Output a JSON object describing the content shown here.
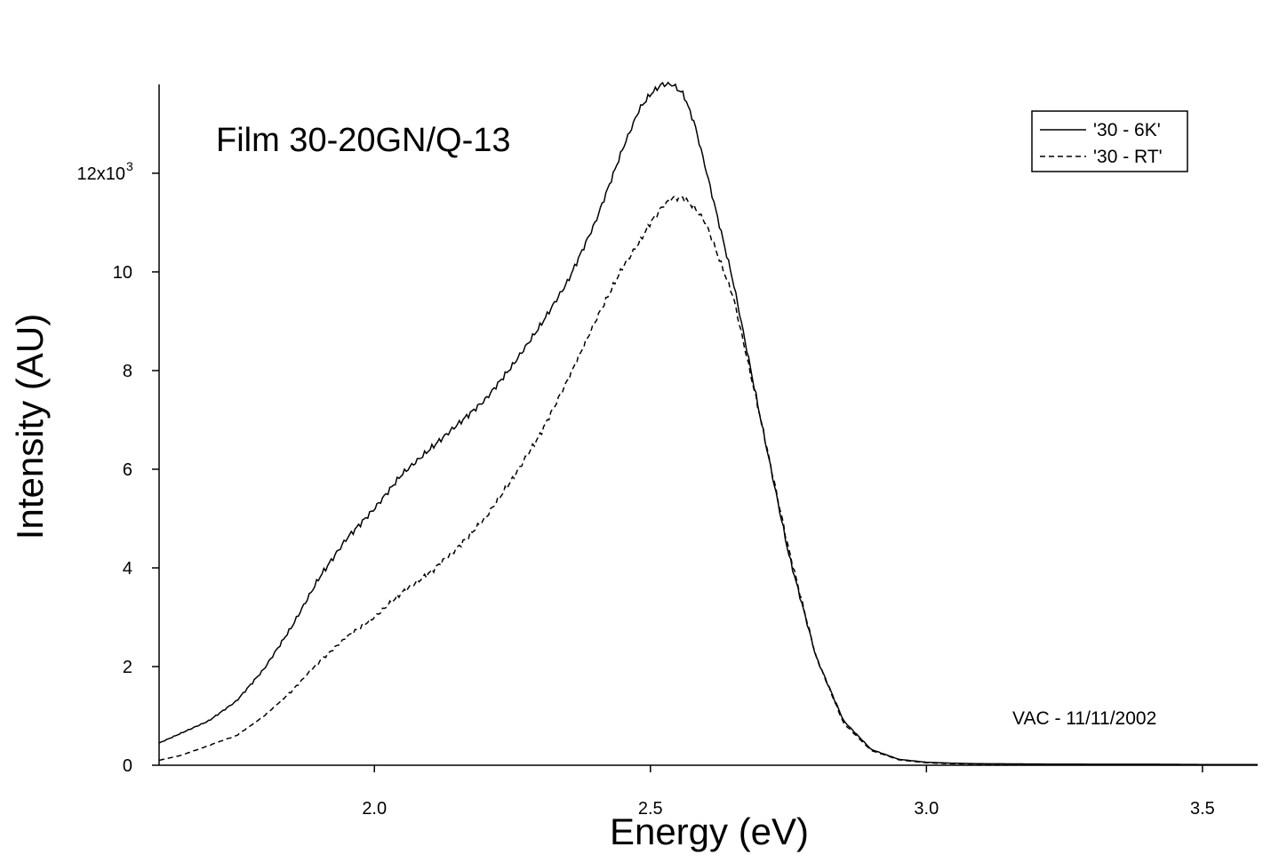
{
  "chart_data": {
    "type": "line",
    "title": "Film 30-20GN/Q-13",
    "xlabel": "Energy (eV)",
    "ylabel": "Intensity (AU)",
    "xlim": [
      1.61,
      3.6
    ],
    "ylim": [
      0,
      13800
    ],
    "x_ticks": [
      2.0,
      2.5,
      3.0,
      3.5
    ],
    "x_tick_labels": [
      "2.0",
      "2.5",
      "3.0",
      "3.5"
    ],
    "y_ticks": [
      0,
      2000,
      4000,
      6000,
      8000,
      10000,
      12000
    ],
    "y_tick_labels": [
      "0",
      "2",
      "4",
      "6",
      "8",
      "10",
      "12x10"
    ],
    "y_multiplier_exponent": "3",
    "grid": false,
    "legend_position": "top-right",
    "annotation": "VAC - 11/11/2002",
    "series": [
      {
        "name": "'30 - 6K'",
        "style": "solid",
        "color": "#000000",
        "x": [
          1.61,
          1.65,
          1.7,
          1.75,
          1.8,
          1.85,
          1.9,
          1.95,
          2.0,
          2.05,
          2.1,
          2.15,
          2.2,
          2.25,
          2.3,
          2.35,
          2.4,
          2.45,
          2.48,
          2.5,
          2.52,
          2.54,
          2.56,
          2.58,
          2.6,
          2.65,
          2.7,
          2.75,
          2.8,
          2.85,
          2.9,
          2.95,
          3.0,
          3.05,
          3.1,
          3.2,
          3.3,
          3.4,
          3.5,
          3.6
        ],
        "y": [
          450,
          650,
          900,
          1300,
          1950,
          2800,
          3800,
          4600,
          5200,
          5900,
          6400,
          6900,
          7400,
          8100,
          8900,
          9800,
          11000,
          12500,
          13300,
          13600,
          13800,
          13800,
          13600,
          13000,
          12100,
          9800,
          7000,
          4300,
          2200,
          900,
          320,
          120,
          60,
          40,
          30,
          25,
          20,
          20,
          15,
          15
        ]
      },
      {
        "name": "'30 - RT'",
        "style": "dashed",
        "color": "#000000",
        "x": [
          1.61,
          1.65,
          1.7,
          1.75,
          1.8,
          1.85,
          1.9,
          1.95,
          2.0,
          2.05,
          2.1,
          2.15,
          2.2,
          2.25,
          2.3,
          2.35,
          2.4,
          2.45,
          2.48,
          2.5,
          2.52,
          2.54,
          2.56,
          2.58,
          2.6,
          2.65,
          2.7,
          2.75,
          2.8,
          2.85,
          2.9,
          2.95,
          3.0,
          3.05,
          3.1,
          3.2,
          3.3,
          3.4,
          3.5,
          3.6
        ],
        "y": [
          100,
          200,
          400,
          600,
          1000,
          1500,
          2100,
          2600,
          3000,
          3500,
          3900,
          4400,
          5000,
          5800,
          6700,
          7800,
          9000,
          10100,
          10600,
          11000,
          11300,
          11500,
          11500,
          11300,
          11000,
          9500,
          7000,
          4400,
          2200,
          850,
          300,
          110,
          50,
          30,
          25,
          20,
          15,
          15,
          10,
          10
        ]
      }
    ]
  }
}
